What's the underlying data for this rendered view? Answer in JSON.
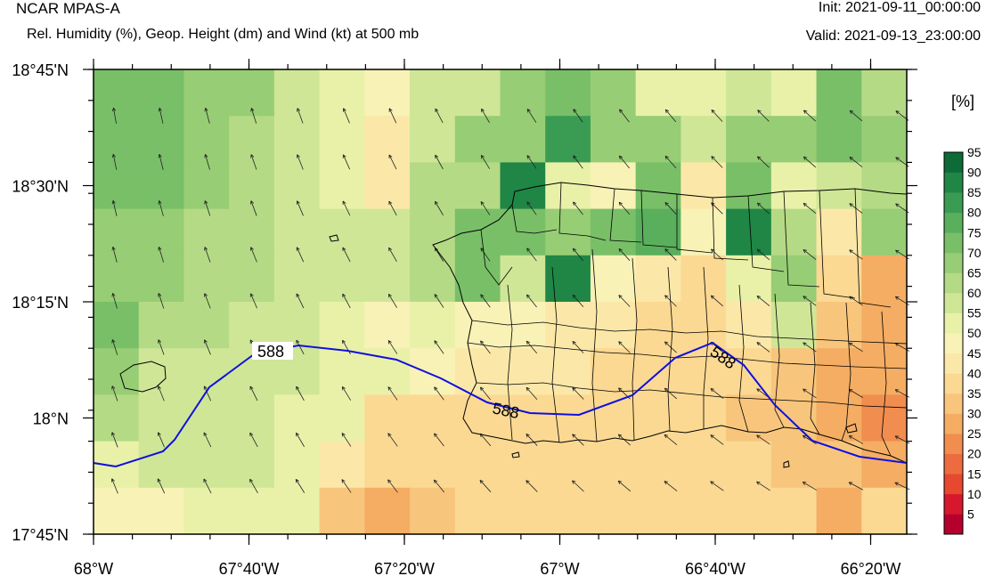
{
  "header": {
    "title": "NCAR MPAS-A",
    "subtitle": "Rel. Humidity (%), Geop. Height (dm) and Wind (kt) at 500 mb",
    "init": "Init: 2021-09-11_00:00:00",
    "valid": "Valid: 2021-09-13_23:00:00"
  },
  "axes": {
    "y_ticks": [
      "18°45'N",
      "18°30'N",
      "18°15'N",
      "18°N",
      "17°45'N"
    ],
    "x_ticks": [
      "68°W",
      "67°40'W",
      "67°20'W",
      "67°W",
      "66°40'W",
      "66°20'W"
    ]
  },
  "colorbar": {
    "unit": "[%]",
    "levels": [
      "5",
      "10",
      "15",
      "20",
      "25",
      "30",
      "35",
      "40",
      "45",
      "50",
      "55",
      "60",
      "65",
      "70",
      "75",
      "80",
      "85",
      "90",
      "95"
    ],
    "colors": [
      "#b5002e",
      "#d7172c",
      "#e64830",
      "#ec6c3f",
      "#f08d4f",
      "#f4ad63",
      "#f8c57c",
      "#fbd993",
      "#fbe8a8",
      "#f8f2b6",
      "#e9f1a9",
      "#cfe697",
      "#b5da85",
      "#97cd74",
      "#79bf68",
      "#5aaf5d",
      "#3a9c52",
      "#1f8646",
      "#0c6b37"
    ]
  },
  "contour": {
    "label": "588",
    "labels": [
      "588",
      "588",
      "588"
    ]
  },
  "grid": {
    "cols": 18,
    "rows": 10,
    "values": [
      [
        75,
        75,
        70,
        70,
        60,
        55,
        50,
        60,
        60,
        70,
        75,
        70,
        55,
        55,
        60,
        55,
        75,
        65
      ],
      [
        75,
        75,
        70,
        65,
        60,
        55,
        45,
        60,
        70,
        70,
        85,
        70,
        70,
        60,
        70,
        70,
        75,
        70
      ],
      [
        75,
        75,
        70,
        65,
        60,
        55,
        45,
        65,
        65,
        90,
        55,
        50,
        75,
        45,
        75,
        55,
        60,
        65
      ],
      [
        70,
        70,
        65,
        65,
        60,
        60,
        60,
        65,
        75,
        75,
        70,
        75,
        80,
        50,
        90,
        65,
        45,
        70
      ],
      [
        70,
        70,
        65,
        65,
        60,
        60,
        60,
        65,
        75,
        60,
        90,
        50,
        45,
        40,
        55,
        70,
        40,
        30
      ],
      [
        75,
        65,
        65,
        60,
        60,
        55,
        50,
        55,
        50,
        50,
        45,
        45,
        40,
        40,
        45,
        60,
        35,
        30
      ],
      [
        70,
        60,
        60,
        60,
        60,
        55,
        55,
        50,
        45,
        45,
        45,
        40,
        40,
        40,
        40,
        35,
        30,
        30
      ],
      [
        65,
        60,
        60,
        60,
        55,
        55,
        40,
        40,
        40,
        40,
        40,
        40,
        40,
        40,
        35,
        35,
        30,
        25
      ],
      [
        55,
        60,
        60,
        60,
        55,
        45,
        40,
        40,
        40,
        40,
        40,
        40,
        40,
        40,
        40,
        35,
        35,
        30
      ],
      [
        50,
        50,
        55,
        55,
        55,
        35,
        30,
        35,
        40,
        40,
        40,
        40,
        40,
        40,
        40,
        40,
        30,
        40
      ]
    ]
  }
}
